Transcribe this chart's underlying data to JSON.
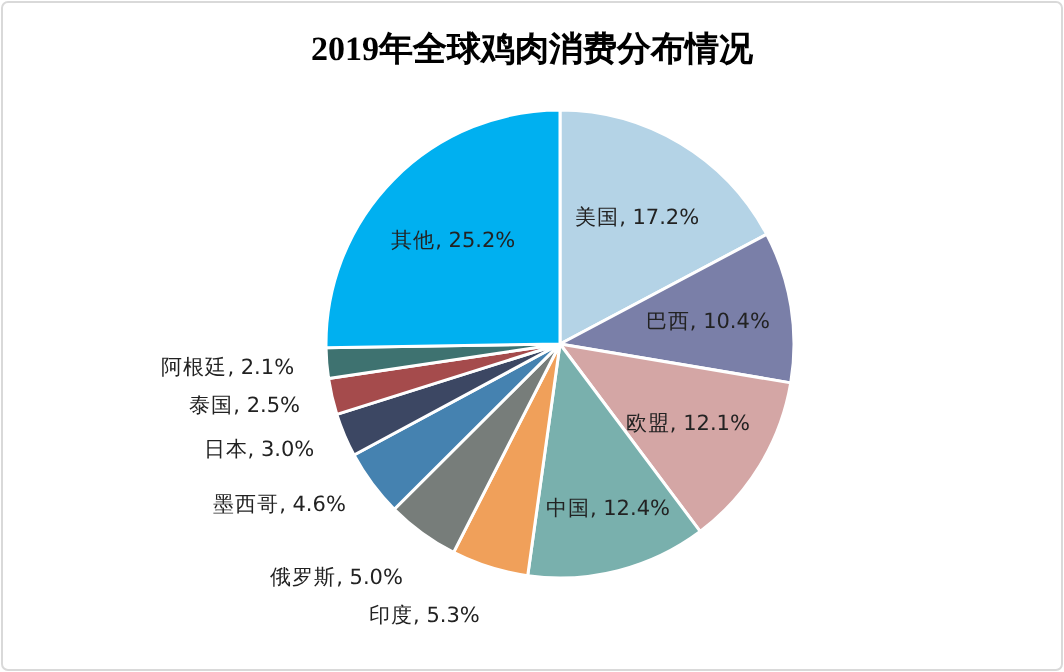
{
  "chart_data": {
    "type": "pie",
    "title": "2019年全球鸡肉消费分布情况",
    "categories": [
      "美国",
      "巴西",
      "欧盟",
      "中国",
      "印度",
      "俄罗斯",
      "墨西哥",
      "日本",
      "泰国",
      "阿根廷",
      "其他"
    ],
    "values": [
      17.2,
      10.4,
      12.1,
      12.4,
      5.3,
      5.0,
      4.6,
      3.0,
      2.5,
      2.1,
      25.2
    ],
    "colors": [
      "#b4d3e6",
      "#7a7fa8",
      "#d4a6a5",
      "#79b0ad",
      "#f0a05a",
      "#777d7a",
      "#4582b0",
      "#3c4763",
      "#a54b4c",
      "#3e7270",
      "#00b0f0"
    ],
    "value_labels": [
      ", 17.2%",
      ", 10.4%",
      ", 12.1%",
      ", 12.4%",
      ", 5.3%",
      ", 5.0%",
      ", 4.6%",
      ", 3.0%",
      ", 2.5%",
      ", 2.1%",
      ", 25.2%"
    ]
  }
}
